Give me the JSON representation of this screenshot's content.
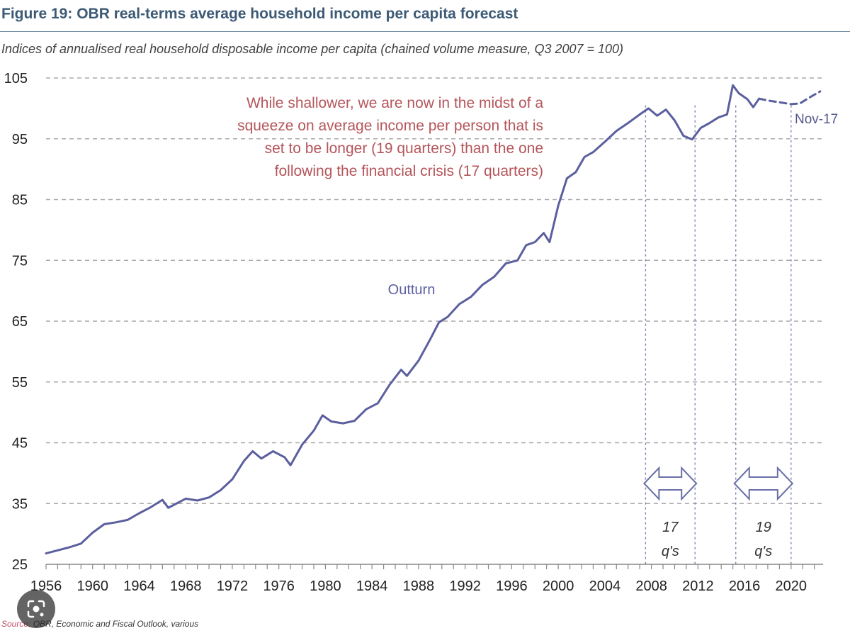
{
  "header": {
    "title": "Figure 19: OBR real-terms average household income per capita forecast",
    "subtitle": "Indices of annualised real household disposable income per capita (chained volume measure, Q3 2007 = 100)"
  },
  "source": {
    "label": "Source:",
    "text": "OBR, Economic and Fiscal Outlook, various"
  },
  "chart_data": {
    "type": "line",
    "title": "Figure 19: OBR real-terms average household income per capita forecast",
    "ylim": [
      25,
      105
    ],
    "xlim": [
      1956,
      2022.75
    ],
    "y_ticks": [
      25,
      35,
      45,
      55,
      65,
      75,
      85,
      95,
      105
    ],
    "x_ticks": [
      1956,
      1960,
      1964,
      1968,
      1972,
      1976,
      1980,
      1984,
      1988,
      1992,
      1996,
      2000,
      2004,
      2008,
      2012,
      2016,
      2020
    ],
    "grid": "horizontal-dashed",
    "colors": {
      "line": "#5b5f9e",
      "annotation": "#b5555a",
      "grid": "#aaaaaa"
    },
    "series": [
      {
        "name": "Outturn",
        "style": "solid",
        "points": [
          [
            1956,
            26.8
          ],
          [
            1957,
            27.3
          ],
          [
            1958,
            27.8
          ],
          [
            1959,
            28.4
          ],
          [
            1960,
            30.2
          ],
          [
            1961,
            31.6
          ],
          [
            1962,
            31.9
          ],
          [
            1963,
            32.3
          ],
          [
            1964,
            33.4
          ],
          [
            1965,
            34.4
          ],
          [
            1966,
            35.6
          ],
          [
            1966.5,
            34.3
          ],
          [
            1967,
            34.8
          ],
          [
            1968,
            35.8
          ],
          [
            1969,
            35.5
          ],
          [
            1970,
            36.0
          ],
          [
            1971,
            37.2
          ],
          [
            1972,
            39.0
          ],
          [
            1973,
            42.0
          ],
          [
            1973.75,
            43.6
          ],
          [
            1974.5,
            42.4
          ],
          [
            1975.5,
            43.6
          ],
          [
            1976.5,
            42.6
          ],
          [
            1977,
            41.3
          ],
          [
            1978,
            44.7
          ],
          [
            1979,
            47.0
          ],
          [
            1979.75,
            49.5
          ],
          [
            1980.5,
            48.5
          ],
          [
            1981.5,
            48.2
          ],
          [
            1982.5,
            48.6
          ],
          [
            1983.5,
            50.5
          ],
          [
            1984.5,
            51.5
          ],
          [
            1985.5,
            54.5
          ],
          [
            1986.5,
            57.0
          ],
          [
            1987,
            56.0
          ],
          [
            1988,
            58.5
          ],
          [
            1989,
            62.0
          ],
          [
            1989.75,
            64.8
          ],
          [
            1990.5,
            65.7
          ],
          [
            1991.5,
            67.8
          ],
          [
            1992.5,
            69.0
          ],
          [
            1993.5,
            71.0
          ],
          [
            1994.5,
            72.3
          ],
          [
            1995.5,
            74.5
          ],
          [
            1996.5,
            75.0
          ],
          [
            1997.25,
            77.5
          ],
          [
            1998,
            78.0
          ],
          [
            1998.75,
            79.5
          ],
          [
            1999.25,
            78.0
          ],
          [
            2000,
            84.0
          ],
          [
            2000.75,
            88.5
          ],
          [
            2001.5,
            89.5
          ],
          [
            2002.25,
            92.0
          ],
          [
            2003,
            92.8
          ],
          [
            2004,
            94.5
          ],
          [
            2005,
            96.3
          ],
          [
            2006,
            97.6
          ],
          [
            2007,
            99.0
          ],
          [
            2007.75,
            100.0
          ],
          [
            2008.5,
            98.8
          ],
          [
            2009.25,
            99.8
          ],
          [
            2010,
            98.0
          ],
          [
            2010.75,
            95.5
          ],
          [
            2011.5,
            94.9
          ],
          [
            2012.25,
            96.8
          ],
          [
            2013,
            97.6
          ],
          [
            2013.75,
            98.5
          ],
          [
            2014.5,
            99.0
          ],
          [
            2015,
            103.8
          ],
          [
            2015.5,
            102.5
          ],
          [
            2016.25,
            101.5
          ],
          [
            2016.75,
            100.2
          ],
          [
            2017.25,
            101.6
          ]
        ]
      },
      {
        "name": "Nov-17",
        "style": "dashed",
        "points": [
          [
            2017.25,
            101.6
          ],
          [
            2018,
            101.3
          ],
          [
            2019,
            101.0
          ],
          [
            2020,
            100.7
          ],
          [
            2020.75,
            100.8
          ],
          [
            2021.5,
            101.7
          ],
          [
            2022.5,
            102.8
          ]
        ]
      }
    ],
    "annotations": {
      "callout": [
        "While shallower, we are now in the midst of a",
        "squeeze on average income per person that is",
        "set to be longer (19 quarters) than the one",
        "following the financial crisis (17 quarters)"
      ],
      "squeezes": [
        {
          "start": 2007.5,
          "end": 2011.75,
          "label_top": "17",
          "label_bottom": "q's"
        },
        {
          "start": 2015.25,
          "end": 2020,
          "label_top": "19",
          "label_bottom": "q's"
        }
      ]
    }
  }
}
